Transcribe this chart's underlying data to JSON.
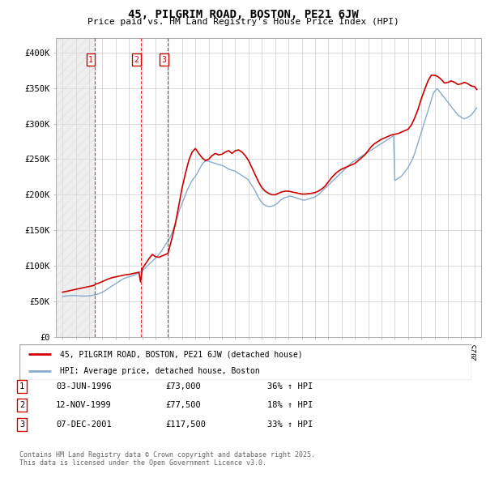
{
  "title": "45, PILGRIM ROAD, BOSTON, PE21 6JW",
  "subtitle": "Price paid vs. HM Land Registry's House Price Index (HPI)",
  "legend_label_red": "45, PILGRIM ROAD, BOSTON, PE21 6JW (detached house)",
  "legend_label_blue": "HPI: Average price, detached house, Boston",
  "footer_line1": "Contains HM Land Registry data © Crown copyright and database right 2025.",
  "footer_line2": "This data is licensed under the Open Government Licence v3.0.",
  "transactions": [
    {
      "label": "1",
      "date": "03-JUN-1996",
      "price": 73000,
      "hpi_change": "36% ↑ HPI",
      "year": 1996.42
    },
    {
      "label": "2",
      "date": "12-NOV-1999",
      "price": 77500,
      "hpi_change": "18% ↑ HPI",
      "year": 1999.87
    },
    {
      "label": "3",
      "date": "07-DEC-2001",
      "price": 117500,
      "hpi_change": "33% ↑ HPI",
      "year": 2001.93
    }
  ],
  "red_color": "#cc0000",
  "blue_color": "#88aacc",
  "grid_color": "#cccccc",
  "background_color": "#ffffff",
  "ylim": [
    0,
    420000
  ],
  "xlim_start": 1993.5,
  "xlim_end": 2025.5,
  "yticks": [
    0,
    50000,
    100000,
    150000,
    200000,
    250000,
    300000,
    350000,
    400000
  ],
  "ytick_labels": [
    "£0",
    "£50K",
    "£100K",
    "£150K",
    "£200K",
    "£250K",
    "£300K",
    "£350K",
    "£400K"
  ],
  "hpi_years": [
    1994,
    1994.083,
    1994.167,
    1994.25,
    1994.333,
    1994.417,
    1994.5,
    1994.583,
    1994.667,
    1994.75,
    1994.833,
    1994.917,
    1995,
    1995.083,
    1995.167,
    1995.25,
    1995.333,
    1995.417,
    1995.5,
    1995.583,
    1995.667,
    1995.75,
    1995.833,
    1995.917,
    1996,
    1996.083,
    1996.167,
    1996.25,
    1996.333,
    1996.417,
    1996.5,
    1996.583,
    1996.667,
    1996.75,
    1996.833,
    1996.917,
    1997,
    1997.083,
    1997.167,
    1997.25,
    1997.333,
    1997.417,
    1997.5,
    1997.583,
    1997.667,
    1997.75,
    1997.833,
    1997.917,
    1998,
    1998.083,
    1998.167,
    1998.25,
    1998.333,
    1998.417,
    1998.5,
    1998.583,
    1998.667,
    1998.75,
    1998.833,
    1998.917,
    1999,
    1999.083,
    1999.167,
    1999.25,
    1999.333,
    1999.417,
    1999.5,
    1999.583,
    1999.667,
    1999.75,
    1999.833,
    1999.917,
    2000,
    2000.083,
    2000.167,
    2000.25,
    2000.333,
    2000.417,
    2000.5,
    2000.583,
    2000.667,
    2000.75,
    2000.833,
    2000.917,
    2001,
    2001.083,
    2001.167,
    2001.25,
    2001.333,
    2001.417,
    2001.5,
    2001.583,
    2001.667,
    2001.75,
    2001.833,
    2001.917,
    2002,
    2002.083,
    2002.167,
    2002.25,
    2002.333,
    2002.417,
    2002.5,
    2002.583,
    2002.667,
    2002.75,
    2002.833,
    2002.917,
    2003,
    2003.083,
    2003.167,
    2003.25,
    2003.333,
    2003.417,
    2003.5,
    2003.583,
    2003.667,
    2003.75,
    2003.833,
    2003.917,
    2004,
    2004.083,
    2004.167,
    2004.25,
    2004.333,
    2004.417,
    2004.5,
    2004.583,
    2004.667,
    2004.75,
    2004.833,
    2004.917,
    2005,
    2005.083,
    2005.167,
    2005.25,
    2005.333,
    2005.417,
    2005.5,
    2005.583,
    2005.667,
    2005.75,
    2005.833,
    2005.917,
    2006,
    2006.083,
    2006.167,
    2006.25,
    2006.333,
    2006.417,
    2006.5,
    2006.583,
    2006.667,
    2006.75,
    2006.833,
    2006.917,
    2007,
    2007.083,
    2007.167,
    2007.25,
    2007.333,
    2007.417,
    2007.5,
    2007.583,
    2007.667,
    2007.75,
    2007.833,
    2007.917,
    2008,
    2008.083,
    2008.167,
    2008.25,
    2008.333,
    2008.417,
    2008.5,
    2008.583,
    2008.667,
    2008.75,
    2008.833,
    2008.917,
    2009,
    2009.083,
    2009.167,
    2009.25,
    2009.333,
    2009.417,
    2009.5,
    2009.583,
    2009.667,
    2009.75,
    2009.833,
    2009.917,
    2010,
    2010.083,
    2010.167,
    2010.25,
    2010.333,
    2010.417,
    2010.5,
    2010.583,
    2010.667,
    2010.75,
    2010.833,
    2010.917,
    2011,
    2011.083,
    2011.167,
    2011.25,
    2011.333,
    2011.417,
    2011.5,
    2011.583,
    2011.667,
    2011.75,
    2011.833,
    2011.917,
    2012,
    2012.083,
    2012.167,
    2012.25,
    2012.333,
    2012.417,
    2012.5,
    2012.583,
    2012.667,
    2012.75,
    2012.833,
    2012.917,
    2013,
    2013.083,
    2013.167,
    2013.25,
    2013.333,
    2013.417,
    2013.5,
    2013.583,
    2013.667,
    2013.75,
    2013.833,
    2013.917,
    2014,
    2014.083,
    2014.167,
    2014.25,
    2014.333,
    2014.417,
    2014.5,
    2014.583,
    2014.667,
    2014.75,
    2014.833,
    2014.917,
    2015,
    2015.083,
    2015.167,
    2015.25,
    2015.333,
    2015.417,
    2015.5,
    2015.583,
    2015.667,
    2015.75,
    2015.833,
    2015.917,
    2016,
    2016.083,
    2016.167,
    2016.25,
    2016.333,
    2016.417,
    2016.5,
    2016.583,
    2016.667,
    2016.75,
    2016.833,
    2016.917,
    2017,
    2017.083,
    2017.167,
    2017.25,
    2017.333,
    2017.417,
    2017.5,
    2017.583,
    2017.667,
    2017.75,
    2017.833,
    2017.917,
    2018,
    2018.083,
    2018.167,
    2018.25,
    2018.333,
    2018.417,
    2018.5,
    2018.583,
    2018.667,
    2018.75,
    2018.833,
    2018.917,
    2019,
    2019.083,
    2019.167,
    2019.25,
    2019.333,
    2019.417,
    2019.5,
    2019.583,
    2019.667,
    2019.75,
    2019.833,
    2019.917,
    2020,
    2020.083,
    2020.167,
    2020.25,
    2020.333,
    2020.417,
    2020.5,
    2020.583,
    2020.667,
    2020.75,
    2020.833,
    2020.917,
    2021,
    2021.083,
    2021.167,
    2021.25,
    2021.333,
    2021.417,
    2021.5,
    2021.583,
    2021.667,
    2021.75,
    2021.833,
    2021.917,
    2022,
    2022.083,
    2022.167,
    2022.25,
    2022.333,
    2022.417,
    2022.5,
    2022.583,
    2022.667,
    2022.75,
    2022.833,
    2022.917,
    2023,
    2023.083,
    2023.167,
    2023.25,
    2023.333,
    2023.417,
    2023.5,
    2023.583,
    2023.667,
    2023.75,
    2023.833,
    2023.917,
    2024,
    2024.083,
    2024.167,
    2024.25,
    2024.333,
    2024.417,
    2024.5,
    2024.583,
    2024.667,
    2024.75,
    2024.833,
    2024.917,
    2025,
    2025.083,
    2025.167
  ],
  "hpi_values": [
    57000,
    57200,
    57400,
    57600,
    57800,
    58000,
    58100,
    58200,
    58300,
    58400,
    58300,
    58200,
    58000,
    57900,
    57800,
    57700,
    57600,
    57500,
    57500,
    57500,
    57500,
    57600,
    57700,
    57800,
    57900,
    58000,
    58200,
    58500,
    58800,
    59100,
    59500,
    60000,
    60500,
    61000,
    61600,
    62200,
    63000,
    63800,
    64700,
    65700,
    66800,
    67900,
    69000,
    70000,
    71000,
    72000,
    73000,
    74000,
    75000,
    76000,
    77000,
    78000,
    79000,
    80000,
    81000,
    82000,
    82500,
    83000,
    83500,
    84000,
    84500,
    85000,
    85500,
    86000,
    86500,
    87000,
    87800,
    88600,
    89500,
    90500,
    91500,
    92500,
    93500,
    94800,
    96000,
    97500,
    99000,
    100500,
    102000,
    103500,
    105000,
    106500,
    108000,
    109500,
    111000,
    112500,
    114000,
    116000,
    118000,
    120000,
    122500,
    125000,
    127500,
    130000,
    132000,
    134000,
    136500,
    139500,
    143000,
    147000,
    151500,
    156000,
    161000,
    166000,
    171000,
    176000,
    180000,
    184000,
    188000,
    192000,
    196000,
    200000,
    204000,
    208000,
    211000,
    214000,
    217000,
    220000,
    222000,
    224000,
    226000,
    228500,
    231000,
    234000,
    237000,
    240000,
    242500,
    244500,
    246000,
    247000,
    247500,
    247500,
    247000,
    246500,
    246000,
    245500,
    245000,
    244500,
    244000,
    243500,
    243000,
    242500,
    242000,
    241500,
    241000,
    240500,
    240000,
    239000,
    238000,
    237000,
    236000,
    235500,
    235000,
    234500,
    234000,
    233500,
    233000,
    232000,
    231000,
    230000,
    229000,
    228000,
    227000,
    226000,
    225000,
    224000,
    223000,
    222000,
    220000,
    218000,
    215500,
    213000,
    210500,
    208000,
    205000,
    202000,
    199000,
    196000,
    193500,
    191000,
    189000,
    187500,
    186000,
    185000,
    184500,
    184000,
    183500,
    183500,
    183500,
    184000,
    184500,
    185000,
    186000,
    187000,
    188000,
    189500,
    191000,
    192500,
    193500,
    194500,
    195500,
    196000,
    196500,
    197000,
    197500,
    198000,
    198000,
    197500,
    197000,
    196500,
    196000,
    195500,
    195000,
    194500,
    194000,
    193500,
    193000,
    192500,
    192500,
    192500,
    193000,
    193500,
    194000,
    194500,
    195000,
    195500,
    196000,
    196500,
    197000,
    198000,
    199000,
    200000,
    201500,
    203000,
    204500,
    206000,
    207500,
    209000,
    210500,
    212000,
    213500,
    215000,
    216500,
    218000,
    219500,
    221000,
    222500,
    224000,
    225500,
    227000,
    228500,
    230000,
    231500,
    233000,
    234500,
    236000,
    237500,
    239000,
    240500,
    242000,
    243500,
    245000,
    246000,
    247000,
    248000,
    249000,
    250000,
    251000,
    252000,
    253000,
    254000,
    255000,
    256000,
    257000,
    258000,
    259000,
    260000,
    261000,
    262000,
    263000,
    264000,
    265000,
    266000,
    267000,
    268000,
    269000,
    270000,
    271000,
    272000,
    273000,
    274000,
    275000,
    276000,
    277000,
    278000,
    279000,
    280000,
    281000,
    282000,
    283000,
    220000,
    221000,
    222000,
    223000,
    224000,
    225000,
    226000,
    228000,
    230000,
    232000,
    234000,
    236000,
    238000,
    241000,
    244000,
    247000,
    250000,
    254000,
    258000,
    263000,
    268000,
    273000,
    278000,
    283000,
    288000,
    293000,
    298000,
    303000,
    308000,
    313000,
    318000,
    323000,
    328000,
    333000,
    338000,
    343000,
    345000,
    347000,
    349000,
    348000,
    346000,
    344000,
    342000,
    340000,
    338000,
    336000,
    334000,
    332000,
    330000,
    328000,
    326000,
    324000,
    322000,
    320000,
    318000,
    316000,
    314000,
    312000,
    311000,
    310000,
    309000,
    308000,
    307000,
    307000,
    307500,
    308000,
    309000,
    310000,
    311000,
    312000,
    314000,
    316000,
    318000,
    320000,
    322000
  ],
  "red_years": [
    1994.0,
    1994.25,
    1994.5,
    1994.75,
    1995.0,
    1995.25,
    1995.5,
    1995.75,
    1996.0,
    1996.25,
    1996.42,
    1996.5,
    1996.75,
    1997.0,
    1997.25,
    1997.5,
    1997.75,
    1998.0,
    1998.25,
    1998.5,
    1998.75,
    1999.0,
    1999.25,
    1999.5,
    1999.75,
    1999.87,
    2000.0,
    2000.25,
    2000.5,
    2000.75,
    2001.0,
    2001.25,
    2001.5,
    2001.75,
    2001.93,
    2002.0,
    2002.25,
    2002.5,
    2002.75,
    2003.0,
    2003.25,
    2003.5,
    2003.75,
    2004.0,
    2004.25,
    2004.5,
    2004.75,
    2005.0,
    2005.25,
    2005.5,
    2005.75,
    2006.0,
    2006.25,
    2006.5,
    2006.75,
    2007.0,
    2007.25,
    2007.5,
    2007.75,
    2008.0,
    2008.25,
    2008.5,
    2008.75,
    2009.0,
    2009.25,
    2009.5,
    2009.75,
    2010.0,
    2010.25,
    2010.5,
    2010.75,
    2011.0,
    2011.25,
    2011.5,
    2011.75,
    2012.0,
    2012.25,
    2012.5,
    2012.75,
    2013.0,
    2013.25,
    2013.5,
    2013.75,
    2014.0,
    2014.25,
    2014.5,
    2014.75,
    2015.0,
    2015.25,
    2015.5,
    2015.75,
    2016.0,
    2016.25,
    2016.5,
    2016.75,
    2017.0,
    2017.25,
    2017.5,
    2017.75,
    2018.0,
    2018.25,
    2018.5,
    2018.75,
    2019.0,
    2019.25,
    2019.5,
    2019.75,
    2020.0,
    2020.25,
    2020.5,
    2020.75,
    2021.0,
    2021.25,
    2021.5,
    2021.75,
    2022.0,
    2022.25,
    2022.5,
    2022.75,
    2023.0,
    2023.25,
    2023.5,
    2023.75,
    2024.0,
    2024.25,
    2024.5,
    2024.75,
    2025.0,
    2025.17
  ],
  "red_values": [
    63000,
    64000,
    65000,
    66000,
    67000,
    68000,
    69000,
    70000,
    71000,
    72000,
    73000,
    74500,
    76000,
    78000,
    80000,
    82000,
    83500,
    84500,
    85500,
    86500,
    87500,
    88000,
    89000,
    90000,
    91000,
    77500,
    96000,
    103000,
    110000,
    116000,
    113000,
    112000,
    114000,
    116000,
    117500,
    122000,
    140000,
    160000,
    185000,
    210000,
    230000,
    248000,
    260000,
    265000,
    258000,
    252000,
    248000,
    250000,
    255000,
    258000,
    256000,
    257000,
    260000,
    262000,
    258000,
    262000,
    263000,
    260000,
    255000,
    248000,
    238000,
    228000,
    218000,
    210000,
    205000,
    202000,
    200000,
    200000,
    202000,
    204000,
    205000,
    205000,
    204000,
    203000,
    202000,
    201000,
    201000,
    201500,
    202000,
    203000,
    205000,
    208000,
    212000,
    218000,
    224000,
    229000,
    233000,
    236000,
    238000,
    240000,
    242000,
    244000,
    248000,
    252000,
    256000,
    262000,
    268000,
    272000,
    275000,
    278000,
    280000,
    282000,
    284000,
    285000,
    286000,
    288000,
    290000,
    292000,
    298000,
    308000,
    320000,
    335000,
    348000,
    360000,
    368000,
    368000,
    366000,
    362000,
    357000,
    358000,
    360000,
    358000,
    355000,
    356000,
    358000,
    356000,
    353000,
    352000,
    348000
  ]
}
